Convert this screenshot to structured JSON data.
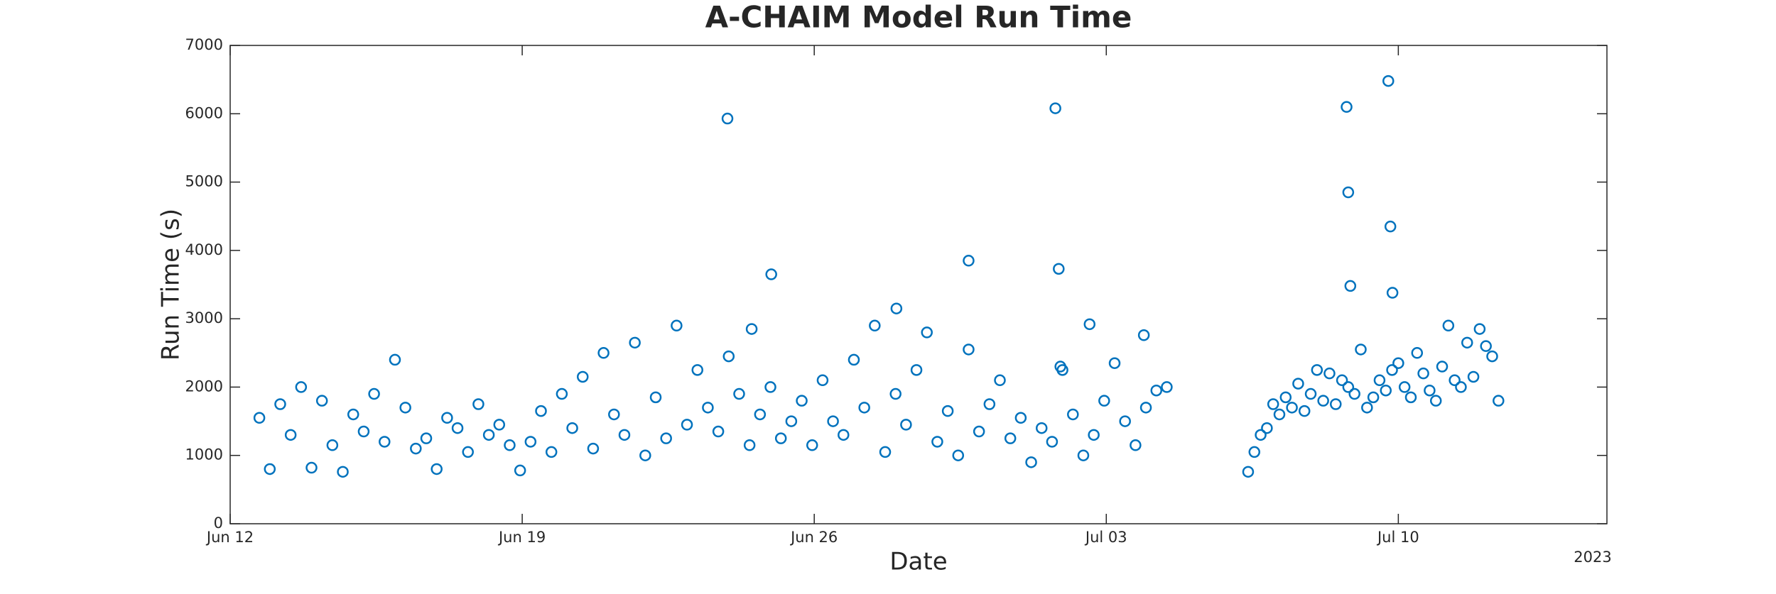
{
  "chart_data": {
    "type": "scatter",
    "title": "A-CHAIM Model Run Time",
    "xlabel": "Date",
    "ylabel": "Run Time (s)",
    "x_year_label": "2023",
    "color": "#0072bd",
    "xlim": [
      0,
      33
    ],
    "ylim": [
      0,
      7000
    ],
    "xticks": [
      {
        "value": 0,
        "label": "Jun 12"
      },
      {
        "value": 7,
        "label": "Jun 19"
      },
      {
        "value": 14,
        "label": "Jun 26"
      },
      {
        "value": 21,
        "label": "Jul 03"
      },
      {
        "value": 28,
        "label": "Jul 10"
      }
    ],
    "yticks": [
      0,
      1000,
      2000,
      3000,
      4000,
      5000,
      6000,
      7000
    ],
    "x": [
      0.7,
      0.95,
      1.2,
      1.45,
      1.7,
      1.95,
      2.2,
      2.45,
      2.7,
      2.95,
      3.2,
      3.45,
      3.7,
      3.95,
      4.2,
      4.45,
      4.7,
      4.95,
      5.2,
      5.45,
      5.7,
      5.95,
      6.2,
      6.45,
      6.7,
      6.95,
      7.2,
      7.45,
      7.7,
      7.95,
      8.2,
      8.45,
      8.7,
      8.95,
      9.2,
      9.45,
      9.7,
      9.95,
      10.2,
      10.45,
      10.7,
      10.95,
      11.2,
      11.45,
      11.7,
      11.95,
      12.2,
      12.45,
      12.7,
      12.95,
      13.2,
      13.45,
      13.7,
      13.95,
      14.2,
      14.45,
      14.7,
      14.95,
      15.2,
      15.45,
      15.7,
      15.95,
      16.2,
      16.45,
      16.7,
      16.95,
      17.2,
      17.45,
      17.7,
      17.95,
      18.2,
      18.45,
      18.7,
      18.95,
      19.2,
      19.45,
      19.7,
      19.95,
      20.2,
      20.45,
      20.7,
      20.95,
      21.2,
      21.45,
      21.7,
      21.95,
      22.2,
      22.45,
      11.92,
      12.97,
      19.78,
      19.86,
      17.7,
      15.97,
      12.5,
      20.6,
      21.9,
      19.9,
      24.4,
      24.55,
      24.7,
      24.85,
      25,
      25.15,
      25.3,
      25.45,
      25.6,
      25.75,
      25.9,
      26.05,
      26.2,
      26.35,
      26.5,
      26.65,
      26.8,
      26.95,
      27.1,
      27.25,
      27.4,
      27.55,
      27.7,
      27.85,
      28,
      28.15,
      28.3,
      28.45,
      28.6,
      28.75,
      28.9,
      29.05,
      29.2,
      29.35,
      29.5,
      29.65,
      29.8,
      29.95,
      30.1,
      30.25,
      30.4,
      26.76,
      26.8,
      26.85,
      27.76,
      27.81,
      27.86
    ],
    "values": [
      1550,
      800,
      1750,
      1300,
      2000,
      820,
      1800,
      1150,
      760,
      1600,
      1350,
      1900,
      1200,
      2400,
      1700,
      1100,
      1250,
      800,
      1550,
      1400,
      1050,
      1750,
      1300,
      1450,
      1150,
      780,
      1200,
      1650,
      1050,
      1900,
      1400,
      2150,
      1100,
      2500,
      1600,
      1300,
      2650,
      1000,
      1850,
      1250,
      2900,
      1450,
      2250,
      1700,
      1350,
      2450,
      1900,
      1150,
      1600,
      2000,
      1250,
      1500,
      1800,
      1150,
      2100,
      1500,
      1300,
      2400,
      1700,
      2900,
      1050,
      1900,
      1450,
      2250,
      2800,
      1200,
      1650,
      1000,
      2550,
      1350,
      1750,
      2100,
      1250,
      1550,
      900,
      1400,
      1200,
      2250,
      1600,
      1000,
      1300,
      1800,
      2350,
      1500,
      1150,
      1700,
      1950,
      2000,
      5930,
      3650,
      6080,
      3730,
      3850,
      3150,
      2850,
      2920,
      2760,
      2300,
      760,
      1050,
      1300,
      1400,
      1750,
      1600,
      1850,
      1700,
      2050,
      1650,
      1900,
      2250,
      1800,
      2200,
      1750,
      2100,
      2000,
      1900,
      2550,
      1700,
      1850,
      2100,
      1950,
      2250,
      2350,
      2000,
      1850,
      2500,
      2200,
      1950,
      1800,
      2300,
      2900,
      2100,
      2000,
      2650,
      2150,
      2850,
      2600,
      2450,
      1800,
      6100,
      4850,
      3480,
      6480,
      4350,
      3380
    ]
  }
}
